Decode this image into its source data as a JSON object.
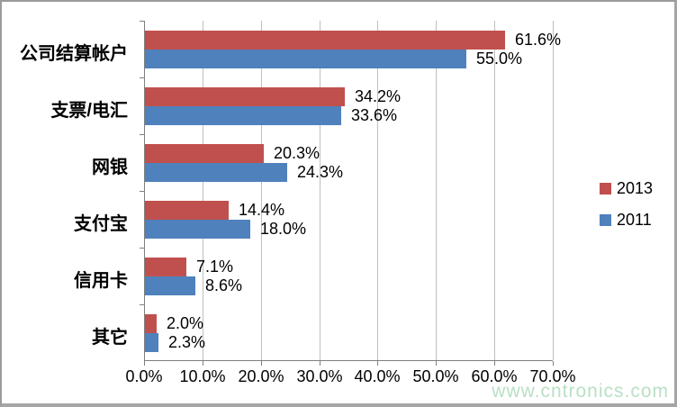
{
  "chart_data": {
    "type": "bar",
    "orientation": "horizontal",
    "title": "",
    "xlabel": "",
    "ylabel": "",
    "categories": [
      "公司结算帐户",
      "支票/电汇",
      "网银",
      "支付宝",
      "信用卡",
      "其它"
    ],
    "series": [
      {
        "name": "2013",
        "color": "#c0504d",
        "values": [
          61.6,
          34.2,
          20.3,
          14.4,
          7.1,
          2.0
        ],
        "labels": [
          "61.6%",
          "34.2%",
          "20.3%",
          "14.4%",
          "7.1%",
          "2.0%"
        ]
      },
      {
        "name": "2011",
        "color": "#4f81bd",
        "values": [
          55.0,
          33.6,
          24.3,
          18.0,
          8.6,
          2.3
        ],
        "labels": [
          "55.0%",
          "33.6%",
          "24.3%",
          "18.0%",
          "8.6%",
          "2.3%"
        ]
      }
    ],
    "xlim": [
      0,
      70
    ],
    "x_tick_labels": [
      "0.0%",
      "10.0%",
      "20.0%",
      "30.0%",
      "40.0%",
      "50.0%",
      "60.0%",
      "70.0%"
    ],
    "grid": "vertical",
    "legend_position": "right",
    "axis_color": "#7f7f7f",
    "gridline_color": "#bfbfbf"
  },
  "watermark": "www.cntronics.com"
}
